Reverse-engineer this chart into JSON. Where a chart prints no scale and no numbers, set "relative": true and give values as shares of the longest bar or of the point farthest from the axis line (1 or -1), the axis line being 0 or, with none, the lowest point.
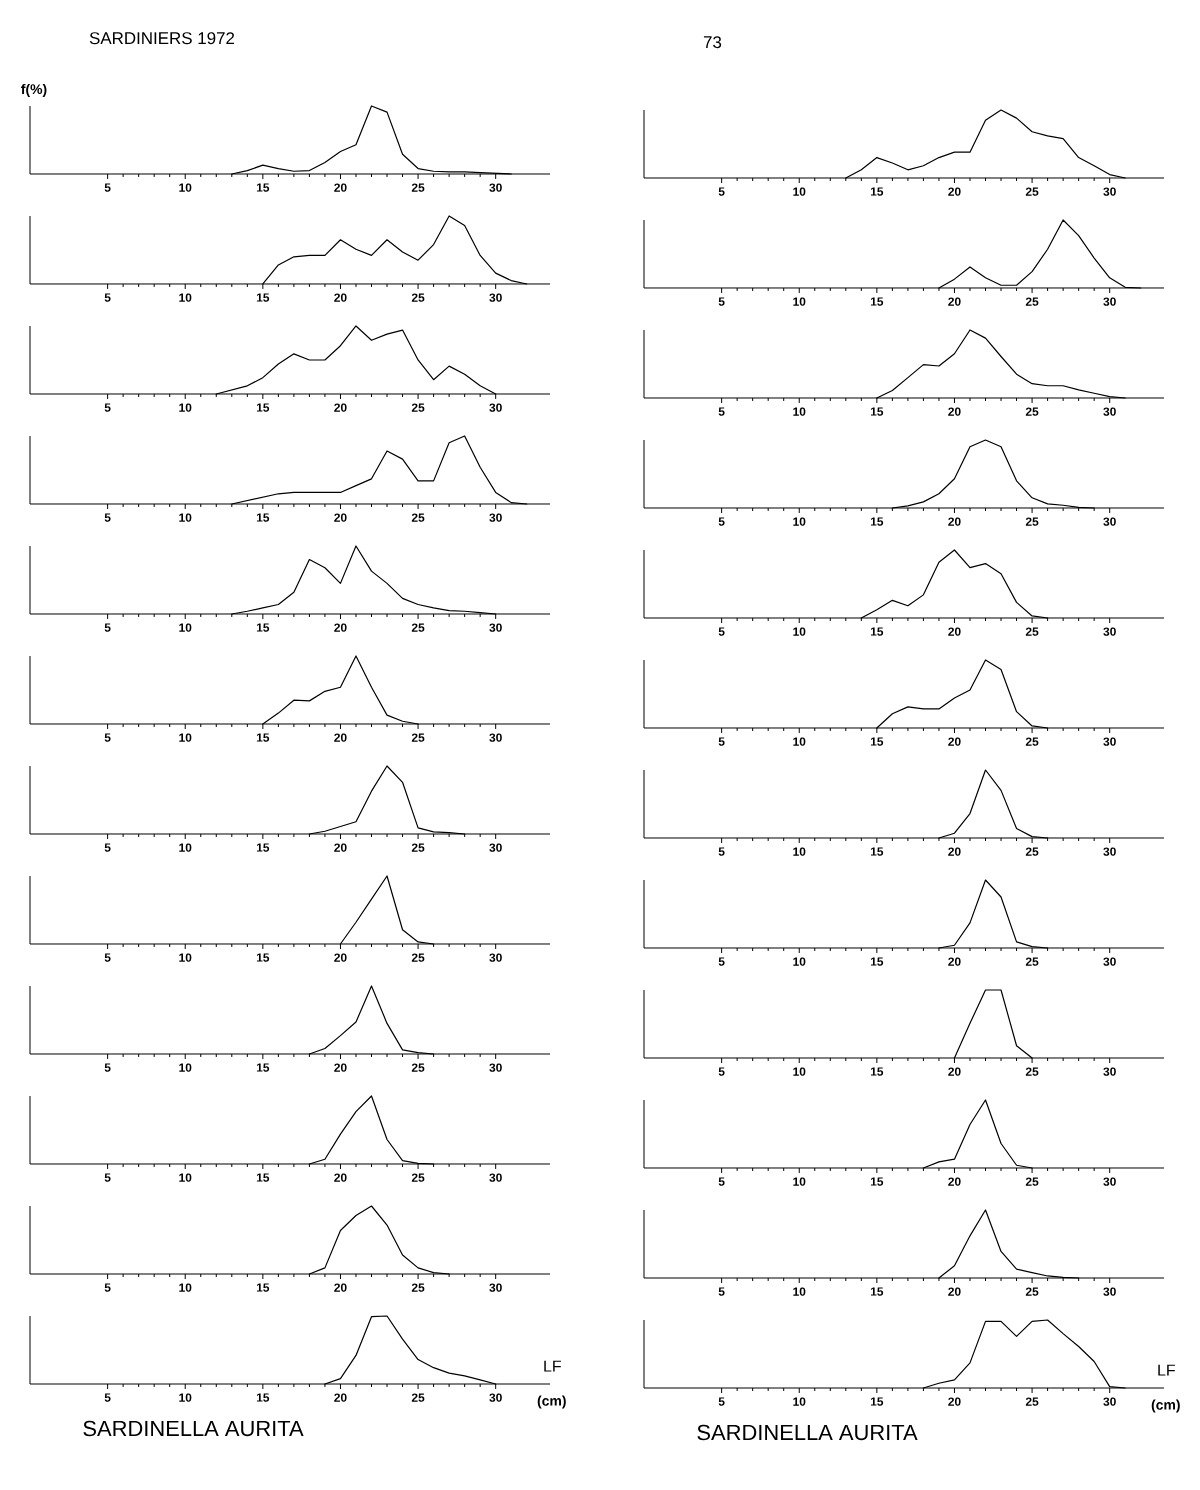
{
  "chart_data": [
    {
      "type": "line",
      "relative": true,
      "title": "SARDINIERS 1972",
      "ylabel": "f(%)",
      "color": "#000000",
      "xlim": [
        0,
        33.5
      ],
      "xticks": [
        5,
        10,
        15,
        20,
        25,
        30
      ],
      "x": [
        13,
        14,
        15,
        16,
        17,
        18,
        19,
        20,
        21,
        22,
        23,
        24,
        25,
        26,
        27,
        28,
        29,
        30,
        31
      ],
      "values": [
        0,
        0.05,
        0.13,
        0.08,
        0.04,
        0.05,
        0.17,
        0.33,
        0.43,
        1,
        0.91,
        0.29,
        0.08,
        0.04,
        0.03,
        0.03,
        0.02,
        0.01,
        0
      ]
    },
    {
      "type": "line",
      "relative": true,
      "color": "#000000",
      "xlim": [
        0,
        33.5
      ],
      "xticks": [
        5,
        10,
        15,
        20,
        25,
        30
      ],
      "x": [
        15,
        16,
        17,
        18,
        19,
        20,
        21,
        22,
        23,
        24,
        25,
        26,
        27,
        28,
        29,
        30,
        31,
        32
      ],
      "values": [
        0,
        0.28,
        0.4,
        0.42,
        0.42,
        0.65,
        0.51,
        0.42,
        0.65,
        0.47,
        0.35,
        0.58,
        1,
        0.86,
        0.42,
        0.16,
        0.05,
        0
      ]
    },
    {
      "type": "line",
      "relative": true,
      "color": "#000000",
      "xlim": [
        0,
        33.5
      ],
      "xticks": [
        5,
        10,
        15,
        20,
        25,
        30
      ],
      "x": [
        12,
        13,
        14,
        15,
        16,
        17,
        18,
        19,
        20,
        21,
        22,
        23,
        24,
        25,
        26,
        27,
        28,
        29,
        30
      ],
      "values": [
        0,
        0.06,
        0.12,
        0.24,
        0.44,
        0.59,
        0.5,
        0.5,
        0.71,
        1,
        0.79,
        0.88,
        0.94,
        0.5,
        0.21,
        0.41,
        0.29,
        0.12,
        0
      ]
    },
    {
      "type": "line",
      "relative": true,
      "color": "#000000",
      "xlim": [
        0,
        33.5
      ],
      "xticks": [
        5,
        10,
        15,
        20,
        25,
        30
      ],
      "x": [
        13,
        14,
        15,
        16,
        17,
        18,
        19,
        20,
        21,
        22,
        23,
        24,
        25,
        26,
        27,
        28,
        29,
        30,
        31,
        32
      ],
      "values": [
        0,
        0.05,
        0.1,
        0.15,
        0.17,
        0.17,
        0.17,
        0.17,
        0.27,
        0.37,
        0.78,
        0.66,
        0.34,
        0.34,
        0.9,
        1,
        0.54,
        0.17,
        0.02,
        0
      ]
    },
    {
      "type": "line",
      "relative": true,
      "color": "#000000",
      "xlim": [
        0,
        33.5
      ],
      "xticks": [
        5,
        10,
        15,
        20,
        25,
        30
      ],
      "x": [
        13,
        14,
        15,
        16,
        17,
        18,
        19,
        20,
        21,
        22,
        23,
        24,
        25,
        26,
        27,
        28,
        29,
        30
      ],
      "values": [
        0,
        0.04,
        0.09,
        0.14,
        0.32,
        0.8,
        0.68,
        0.45,
        1,
        0.63,
        0.45,
        0.23,
        0.14,
        0.09,
        0.05,
        0.04,
        0.02,
        0
      ]
    },
    {
      "type": "line",
      "relative": true,
      "color": "#000000",
      "xlim": [
        0,
        33.5
      ],
      "xticks": [
        5,
        10,
        15,
        20,
        25,
        30
      ],
      "x": [
        15,
        16,
        17,
        18,
        19,
        20,
        21,
        22,
        23,
        24,
        25
      ],
      "values": [
        0,
        0.16,
        0.35,
        0.34,
        0.48,
        0.54,
        1,
        0.54,
        0.13,
        0.04,
        0
      ]
    },
    {
      "type": "line",
      "relative": true,
      "color": "#000000",
      "xlim": [
        0,
        33.5
      ],
      "xticks": [
        5,
        10,
        15,
        20,
        25,
        30
      ],
      "x": [
        18,
        19,
        20,
        21,
        22,
        23,
        24,
        25,
        26,
        27,
        28
      ],
      "values": [
        0,
        0.04,
        0.11,
        0.18,
        0.63,
        1,
        0.76,
        0.09,
        0.03,
        0.02,
        0
      ]
    },
    {
      "type": "line",
      "relative": true,
      "color": "#000000",
      "xlim": [
        0,
        33.5
      ],
      "xticks": [
        5,
        10,
        15,
        20,
        25,
        30
      ],
      "x": [
        20,
        21,
        22,
        23,
        24,
        25,
        26
      ],
      "values": [
        0,
        0.32,
        0.66,
        1,
        0.21,
        0.03,
        0
      ]
    },
    {
      "type": "line",
      "relative": true,
      "color": "#000000",
      "xlim": [
        0,
        33.5
      ],
      "xticks": [
        5,
        10,
        15,
        20,
        25,
        30
      ],
      "x": [
        18,
        19,
        20,
        21,
        22,
        23,
        24,
        25,
        26
      ],
      "values": [
        0,
        0.08,
        0.27,
        0.47,
        1,
        0.45,
        0.06,
        0.02,
        0
      ]
    },
    {
      "type": "line",
      "relative": true,
      "color": "#000000",
      "xlim": [
        0,
        33.5
      ],
      "xticks": [
        5,
        10,
        15,
        20,
        25,
        30
      ],
      "x": [
        18,
        19,
        20,
        21,
        22,
        23,
        24,
        25,
        26
      ],
      "values": [
        0,
        0.07,
        0.44,
        0.77,
        1,
        0.36,
        0.05,
        0.01,
        0
      ]
    },
    {
      "type": "line",
      "relative": true,
      "color": "#000000",
      "xlim": [
        0,
        33.5
      ],
      "xticks": [
        5,
        10,
        15,
        20,
        25,
        30
      ],
      "x": [
        18,
        19,
        20,
        21,
        22,
        23,
        24,
        25,
        26,
        27
      ],
      "values": [
        0,
        0.09,
        0.64,
        0.86,
        1,
        0.72,
        0.28,
        0.09,
        0.02,
        0
      ]
    },
    {
      "type": "line",
      "relative": true,
      "xlabel": "(cm)",
      "annotations": [
        "LF",
        "SARDINELLA AURITA"
      ],
      "color": "#000000",
      "xlim": [
        0,
        33.5
      ],
      "xticks": [
        5,
        10,
        15,
        20,
        25,
        30
      ],
      "x": [
        19,
        20,
        21,
        22,
        23,
        24,
        25,
        26,
        27,
        28,
        29,
        30
      ],
      "values": [
        0,
        0.08,
        0.42,
        0.99,
        1,
        0.66,
        0.36,
        0.24,
        0.16,
        0.12,
        0.06,
        0
      ]
    },
    {
      "type": "line",
      "relative": true,
      "title": "73",
      "color": "#000000",
      "xlim": [
        0,
        33.5
      ],
      "xticks": [
        5,
        10,
        15,
        20,
        25,
        30
      ],
      "x": [
        13,
        14,
        15,
        16,
        17,
        18,
        19,
        20,
        21,
        22,
        23,
        24,
        25,
        26,
        27,
        28,
        29,
        30,
        31
      ],
      "values": [
        0,
        0.12,
        0.3,
        0.22,
        0.12,
        0.18,
        0.3,
        0.38,
        0.38,
        0.85,
        1,
        0.88,
        0.68,
        0.62,
        0.58,
        0.3,
        0.18,
        0.05,
        0
      ]
    },
    {
      "type": "line",
      "relative": true,
      "color": "#000000",
      "xlim": [
        0,
        33.5
      ],
      "xticks": [
        5,
        10,
        15,
        20,
        25,
        30
      ],
      "x": [
        19,
        20,
        21,
        22,
        23,
        24,
        25,
        26,
        27,
        28,
        29,
        30,
        31,
        32
      ],
      "values": [
        0,
        0.13,
        0.31,
        0.15,
        0.04,
        0.04,
        0.24,
        0.57,
        1,
        0.77,
        0.44,
        0.15,
        0.01,
        0
      ]
    },
    {
      "type": "line",
      "relative": true,
      "color": "#000000",
      "xlim": [
        0,
        33.5
      ],
      "xticks": [
        5,
        10,
        15,
        20,
        25,
        30
      ],
      "x": [
        15,
        16,
        17,
        18,
        19,
        20,
        21,
        22,
        23,
        24,
        25,
        26,
        27,
        28,
        29,
        30,
        31
      ],
      "values": [
        0,
        0.11,
        0.3,
        0.49,
        0.47,
        0.65,
        1,
        0.88,
        0.61,
        0.35,
        0.21,
        0.18,
        0.18,
        0.12,
        0.07,
        0.02,
        0
      ]
    },
    {
      "type": "line",
      "relative": true,
      "color": "#000000",
      "xlim": [
        0,
        33.5
      ],
      "xticks": [
        5,
        10,
        15,
        20,
        25,
        30
      ],
      "x": [
        16,
        17,
        18,
        19,
        20,
        21,
        22,
        23,
        24,
        25,
        26,
        27,
        28,
        29
      ],
      "values": [
        0,
        0.03,
        0.09,
        0.21,
        0.43,
        0.9,
        1,
        0.9,
        0.4,
        0.15,
        0.06,
        0.04,
        0.01,
        0
      ]
    },
    {
      "type": "line",
      "relative": true,
      "color": "#000000",
      "xlim": [
        0,
        33.5
      ],
      "xticks": [
        5,
        10,
        15,
        20,
        25,
        30
      ],
      "x": [
        14,
        15,
        16,
        17,
        18,
        19,
        20,
        21,
        22,
        23,
        24,
        25,
        26
      ],
      "values": [
        0,
        0.12,
        0.26,
        0.18,
        0.34,
        0.82,
        1,
        0.74,
        0.8,
        0.65,
        0.23,
        0.03,
        0
      ]
    },
    {
      "type": "line",
      "relative": true,
      "color": "#000000",
      "xlim": [
        0,
        33.5
      ],
      "xticks": [
        5,
        10,
        15,
        20,
        25,
        30
      ],
      "x": [
        15,
        16,
        17,
        18,
        19,
        20,
        21,
        22,
        23,
        24,
        25,
        26
      ],
      "values": [
        0,
        0.21,
        0.31,
        0.28,
        0.28,
        0.44,
        0.56,
        1,
        0.86,
        0.24,
        0.03,
        0
      ]
    },
    {
      "type": "line",
      "relative": true,
      "color": "#000000",
      "xlim": [
        0,
        33.5
      ],
      "xticks": [
        5,
        10,
        15,
        20,
        25,
        30
      ],
      "x": [
        19,
        20,
        21,
        22,
        23,
        24,
        25,
        26
      ],
      "values": [
        0,
        0.07,
        0.36,
        1,
        0.7,
        0.14,
        0.02,
        0
      ]
    },
    {
      "type": "line",
      "relative": true,
      "color": "#000000",
      "xlim": [
        0,
        33.5
      ],
      "xticks": [
        5,
        10,
        15,
        20,
        25,
        30
      ],
      "x": [
        19,
        20,
        21,
        22,
        23,
        24,
        25,
        26
      ],
      "values": [
        0,
        0.04,
        0.37,
        1,
        0.75,
        0.09,
        0.02,
        0
      ]
    },
    {
      "type": "line",
      "relative": true,
      "color": "#000000",
      "xlim": [
        0,
        33.5
      ],
      "xticks": [
        5,
        10,
        15,
        20,
        25,
        30
      ],
      "x": [
        20,
        21,
        22,
        23,
        24,
        25
      ],
      "values": [
        0,
        0.51,
        1,
        1,
        0.18,
        0
      ]
    },
    {
      "type": "line",
      "relative": true,
      "color": "#000000",
      "xlim": [
        0,
        33.5
      ],
      "xticks": [
        5,
        10,
        15,
        20,
        25,
        30
      ],
      "x": [
        18,
        19,
        20,
        21,
        22,
        23,
        24,
        25
      ],
      "values": [
        0,
        0.09,
        0.13,
        0.64,
        1,
        0.36,
        0.04,
        0
      ]
    },
    {
      "type": "line",
      "relative": true,
      "color": "#000000",
      "xlim": [
        0,
        33.5
      ],
      "xticks": [
        5,
        10,
        15,
        20,
        25,
        30
      ],
      "x": [
        19,
        20,
        21,
        22,
        23,
        24,
        25,
        26,
        27,
        28
      ],
      "values": [
        0,
        0.18,
        0.62,
        1,
        0.39,
        0.13,
        0.08,
        0.03,
        0.01,
        0
      ]
    },
    {
      "type": "line",
      "relative": true,
      "xlabel": "(cm)",
      "annotations": [
        "LF",
        "SARDINELLA AURITA"
      ],
      "color": "#000000",
      "xlim": [
        0,
        33.5
      ],
      "xticks": [
        5,
        10,
        15,
        20,
        25,
        30
      ],
      "x": [
        18,
        19,
        20,
        21,
        22,
        23,
        24,
        25,
        26,
        27,
        28,
        29,
        30,
        31
      ],
      "values": [
        0,
        0.07,
        0.12,
        0.37,
        0.98,
        0.98,
        0.76,
        0.98,
        1,
        0.8,
        0.61,
        0.39,
        0.02,
        0
      ]
    }
  ]
}
